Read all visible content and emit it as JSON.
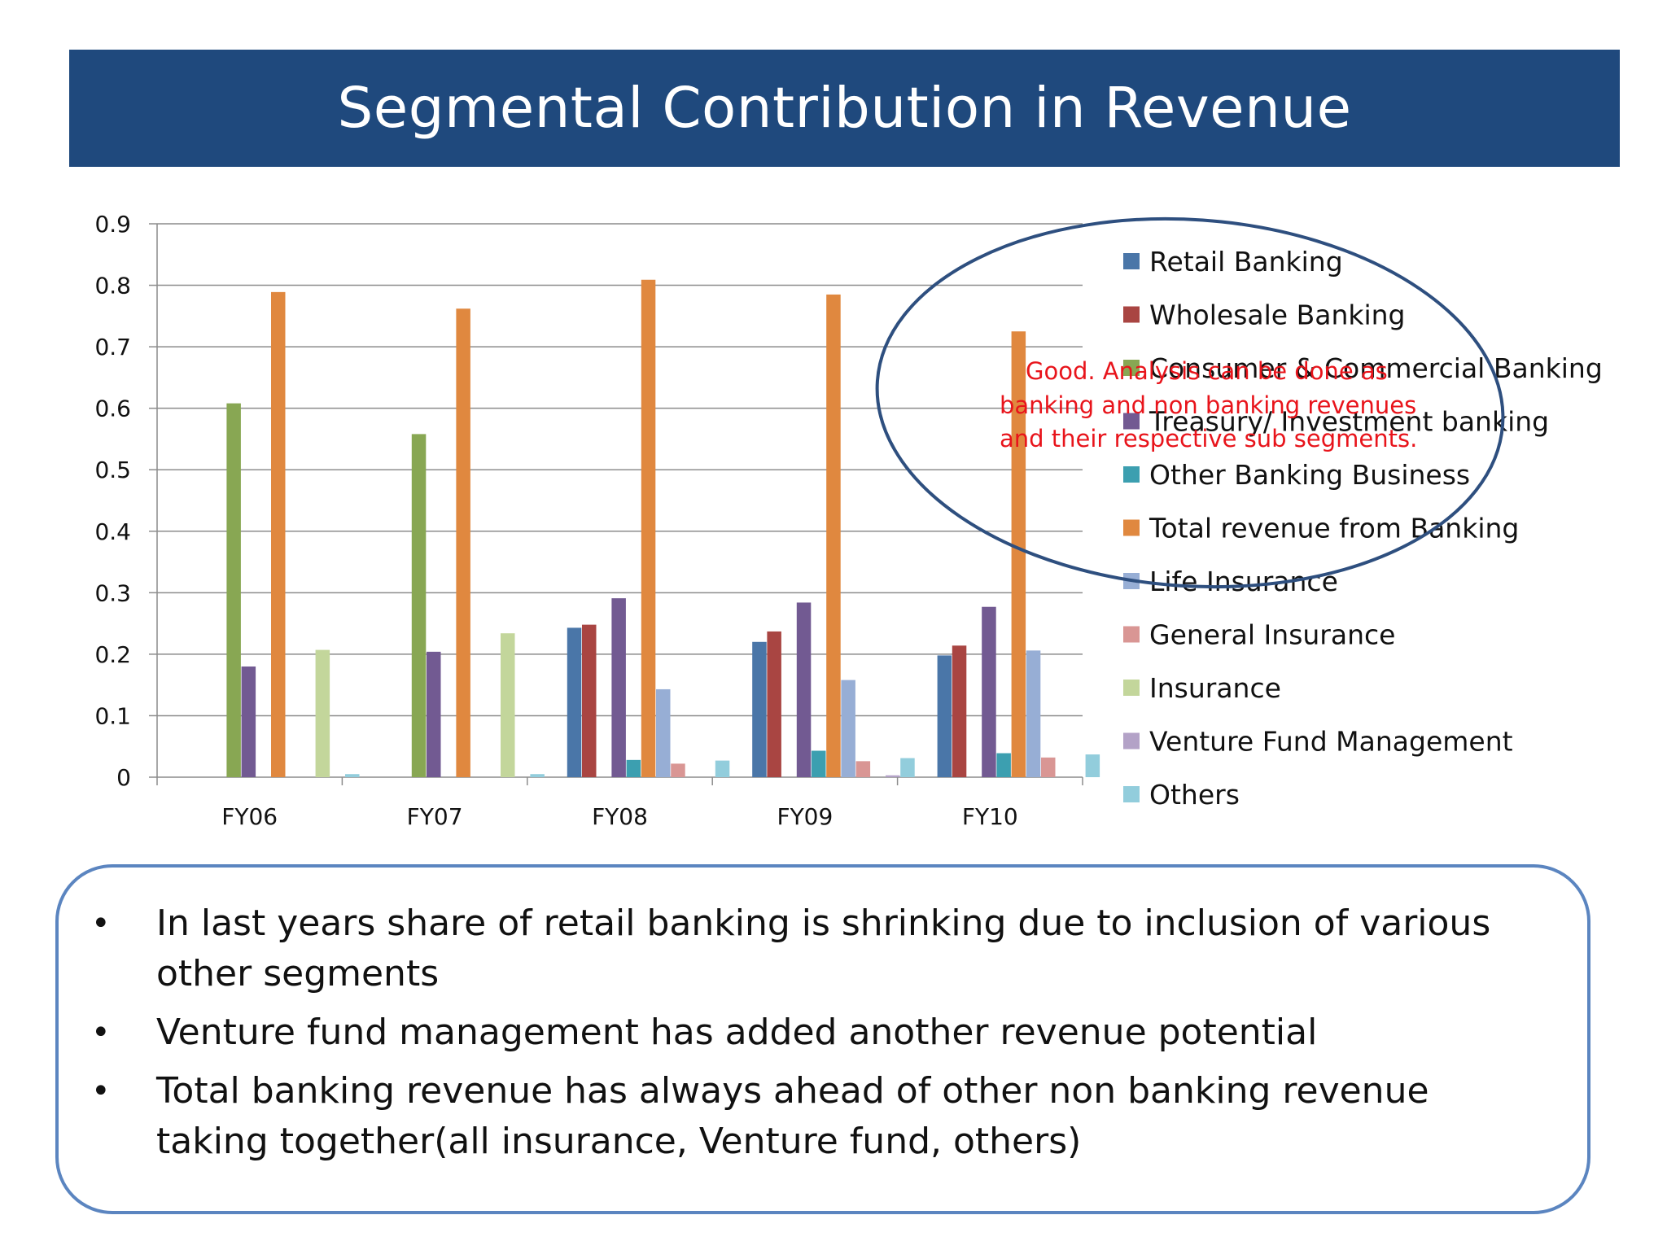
{
  "slide": {
    "title": "Segmental Contribution in Revenue"
  },
  "chart_data": {
    "type": "bar",
    "categories": [
      "FY06",
      "FY07",
      "FY08",
      "FY09",
      "FY10"
    ],
    "ylim": [
      0,
      0.9
    ],
    "yticks": [
      "0",
      "0.1",
      "0.2",
      "0.3",
      "0.4",
      "0.5",
      "0.6",
      "0.7",
      "0.8",
      "0.9"
    ],
    "grid": true,
    "legend_position": "right",
    "series": [
      {
        "name": "Retail Banking",
        "color": "#4a76a8",
        "values": [
          0,
          0,
          0.243,
          0.22,
          0.198
        ]
      },
      {
        "name": "Wholesale Banking",
        "color": "#a94542",
        "values": [
          0,
          0,
          0.248,
          0.237,
          0.214
        ]
      },
      {
        "name": "Consumer & Commercial Banking",
        "color": "#88a753",
        "values": [
          0.608,
          0.558,
          0,
          0,
          0
        ]
      },
      {
        "name": "Treasury/ Investment banking",
        "color": "#725a92",
        "values": [
          0.18,
          0.204,
          0.291,
          0.284,
          0.277
        ]
      },
      {
        "name": "Other Banking Business",
        "color": "#3c9fb0",
        "values": [
          0,
          0,
          0.028,
          0.043,
          0.039
        ]
      },
      {
        "name": "Total revenue from Banking",
        "color": "#e0883f",
        "values": [
          0.789,
          0.762,
          0.809,
          0.785,
          0.725
        ]
      },
      {
        "name": "Life Insurance",
        "color": "#97aed5",
        "values": [
          0,
          0,
          0.143,
          0.158,
          0.206
        ]
      },
      {
        "name": "General Insurance",
        "color": "#d99694",
        "values": [
          0,
          0,
          0.022,
          0.026,
          0.032
        ]
      },
      {
        "name": "Insurance",
        "color": "#c3d69b",
        "values": [
          0.207,
          0.234,
          0,
          0,
          0
        ]
      },
      {
        "name": "Venture Fund Management",
        "color": "#b3a2c7",
        "values": [
          0,
          0,
          0,
          0.003,
          0
        ]
      },
      {
        "name": "Others",
        "color": "#92cddc",
        "values": [
          0.005,
          0.005,
          0.027,
          0.031,
          0.037
        ]
      }
    ],
    "annotation": {
      "lines": [
        "Good. Analysis can be done as",
        "banking and non banking revenues",
        "and their respective sub segments."
      ],
      "color": "#e8141b",
      "ellipse_color": "#2e4f7f"
    }
  },
  "notes": {
    "bullet": "•",
    "items": [
      "In last years share of retail banking is shrinking due to inclusion of various other segments",
      "Venture fund management has added another revenue potential",
      "Total banking revenue has always ahead of other non banking revenue taking together(all insurance, Venture fund, others)"
    ]
  }
}
